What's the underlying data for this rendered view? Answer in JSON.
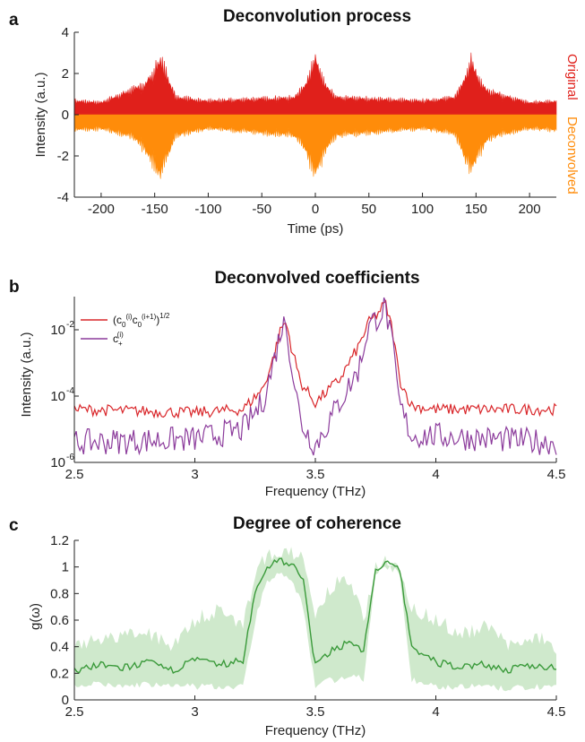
{
  "chart_data": [
    {
      "panel": "a",
      "type": "area",
      "title": "Deconvolution process",
      "xlabel": "Time (ps)",
      "ylabel": "Intensity (a.u.)",
      "xlim": [
        -225,
        225
      ],
      "ylim": [
        -4,
        4
      ],
      "xticks": [
        -200,
        -150,
        -100,
        -50,
        0,
        50,
        100,
        150,
        200
      ],
      "yticks": [
        -4,
        -2,
        0,
        2,
        4
      ],
      "grid": false,
      "legend_position": "right-outside-vertical",
      "series": [
        {
          "name": "Original",
          "color": "#e0201b",
          "x": [
            -225,
            -200,
            -170,
            -160,
            -150,
            -145,
            -140,
            -130,
            -100,
            -60,
            -20,
            -10,
            0,
            10,
            20,
            60,
            100,
            130,
            140,
            145,
            150,
            160,
            170,
            200,
            225
          ],
          "values": [
            0.8,
            0.7,
            1.5,
            1.7,
            2.6,
            3.2,
            2.5,
            1.0,
            0.8,
            0.9,
            1.0,
            1.7,
            3.2,
            1.6,
            1.0,
            0.9,
            0.8,
            1.0,
            2.2,
            3.2,
            2.4,
            1.4,
            1.2,
            0.7,
            0.8
          ]
        },
        {
          "name": "Deconvolved",
          "color": "#ff8c0a",
          "x": [
            -225,
            -200,
            -170,
            -160,
            -150,
            -145,
            -140,
            -130,
            -100,
            -60,
            -20,
            -10,
            0,
            10,
            20,
            60,
            100,
            130,
            140,
            145,
            150,
            160,
            170,
            200,
            225
          ],
          "values": [
            -0.9,
            -0.8,
            -1.3,
            -2.0,
            -3.0,
            -3.4,
            -2.8,
            -1.2,
            -0.8,
            -1.0,
            -1.2,
            -2.0,
            -3.5,
            -2.0,
            -1.2,
            -1.0,
            -0.8,
            -1.1,
            -2.5,
            -3.3,
            -2.6,
            -1.5,
            -1.2,
            -0.8,
            -0.9
          ]
        }
      ]
    },
    {
      "panel": "b",
      "type": "line",
      "title": "Deconvolved coefficients",
      "xlabel": "Frequency (THz)",
      "ylabel": "Intensity (a.u.)",
      "xlim": [
        2.5,
        4.5
      ],
      "ylim_log10": [
        -6,
        -1
      ],
      "yscale": "log",
      "xticks": [
        2.5,
        3,
        3.5,
        4,
        4.5
      ],
      "yticks": [
        "10^-6",
        "10^-4",
        "10^-2"
      ],
      "grid": false,
      "legend_position": "top-left",
      "series": [
        {
          "name": "(c0(i)c0(i+1))1/2",
          "color": "#d9262a",
          "x": [
            2.5,
            3.0,
            3.2,
            3.28,
            3.32,
            3.36,
            3.38,
            3.4,
            3.44,
            3.5,
            3.6,
            3.68,
            3.72,
            3.76,
            3.79,
            3.82,
            3.85,
            3.9,
            4.0,
            4.5
          ],
          "log10": [
            -4.4,
            -4.5,
            -4.4,
            -3.8,
            -3.0,
            -1.9,
            -1.8,
            -2.5,
            -3.6,
            -4.2,
            -3.5,
            -2.5,
            -1.8,
            -1.5,
            -1.2,
            -2.0,
            -3.5,
            -4.3,
            -4.4,
            -4.4
          ]
        },
        {
          "name": "c+(i)",
          "color": "#8c3c9c",
          "x": [
            2.5,
            3.0,
            3.2,
            3.28,
            3.32,
            3.36,
            3.38,
            3.4,
            3.44,
            3.5,
            3.6,
            3.68,
            3.72,
            3.76,
            3.79,
            3.82,
            3.85,
            3.9,
            4.0,
            4.5
          ],
          "log10": [
            -5.4,
            -5.3,
            -5.0,
            -4.2,
            -3.2,
            -1.9,
            -1.8,
            -3.0,
            -4.8,
            -5.5,
            -4.2,
            -3.2,
            -1.9,
            -1.6,
            -1.3,
            -2.5,
            -4.3,
            -5.2,
            -5.2,
            -5.4
          ]
        }
      ]
    },
    {
      "panel": "c",
      "type": "line",
      "title": "Degree of coherence",
      "xlabel": "Frequency (THz)",
      "ylabel": "g(ω)",
      "xlim": [
        2.5,
        4.5
      ],
      "ylim": [
        0,
        1.2
      ],
      "xticks": [
        2.5,
        3,
        3.5,
        4,
        4.5
      ],
      "yticks": [
        0,
        0.2,
        0.4,
        0.6,
        0.8,
        1,
        1.2
      ],
      "grid": false,
      "series": [
        {
          "name": "",
          "color": "#3a9a3a",
          "x": [
            2.5,
            2.6,
            2.7,
            2.8,
            2.9,
            3.0,
            3.1,
            3.2,
            3.25,
            3.3,
            3.35,
            3.4,
            3.45,
            3.5,
            3.55,
            3.6,
            3.65,
            3.7,
            3.75,
            3.8,
            3.85,
            3.9,
            4.0,
            4.1,
            4.2,
            4.3,
            4.4,
            4.5
          ],
          "values": [
            0.22,
            0.26,
            0.24,
            0.28,
            0.22,
            0.3,
            0.26,
            0.3,
            0.8,
            1.0,
            1.06,
            1.02,
            0.9,
            0.25,
            0.35,
            0.4,
            0.45,
            0.35,
            0.98,
            1.02,
            0.98,
            0.4,
            0.28,
            0.25,
            0.27,
            0.22,
            0.26,
            0.24
          ],
          "band_upper": [
            0.4,
            0.45,
            0.48,
            0.5,
            0.42,
            0.6,
            0.68,
            0.55,
            0.95,
            1.1,
            1.1,
            1.1,
            1.05,
            0.6,
            0.8,
            0.9,
            0.85,
            0.6,
            1.0,
            1.04,
            1.0,
            0.7,
            0.6,
            0.5,
            0.55,
            0.42,
            0.48,
            0.4
          ],
          "band_lower": [
            0.1,
            0.12,
            0.1,
            0.12,
            0.1,
            0.1,
            0.1,
            0.1,
            0.6,
            0.9,
            0.95,
            0.9,
            0.7,
            0.1,
            0.15,
            0.15,
            0.2,
            0.15,
            0.95,
            1.0,
            0.95,
            0.15,
            0.1,
            0.1,
            0.1,
            0.08,
            0.1,
            0.1
          ]
        }
      ]
    }
  ],
  "panels": {
    "a": {
      "letter": "a",
      "title": "Deconvolution process",
      "xlabel": "Time (ps)",
      "ylabel": "Intensity (a.u.)",
      "legend_original": "Original",
      "legend_deconvolved": "Deconvolved"
    },
    "b": {
      "letter": "b",
      "title": "Deconvolved coefficients",
      "xlabel": "Frequency (THz)",
      "ylabel": "Intensity (a.u.)"
    },
    "c": {
      "letter": "c",
      "title": "Degree of coherence",
      "xlabel": "Frequency (THz)",
      "ylabel": "g(ω)"
    }
  },
  "colors": {
    "original": "#e0201b",
    "deconvolved": "#ff8c0a",
    "b_line1": "#d9262a",
    "b_line2": "#8c3c9c",
    "c_line": "#3a9a3a",
    "c_band": "#cfe9cc"
  }
}
